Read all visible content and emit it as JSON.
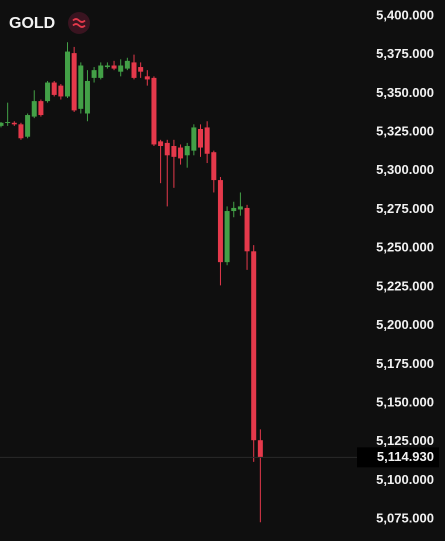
{
  "chart_data": {
    "type": "candlestick",
    "title": "GOLD",
    "open": [
      5329,
      5331,
      5331,
      5330,
      5322,
      5335,
      5345,
      5345,
      5357,
      5355,
      5348,
      5376,
      5340,
      5337,
      5360,
      5360,
      5367,
      5368,
      5364,
      5366,
      5370,
      5367,
      5361,
      5360,
      5319,
      5318,
      5316,
      5315,
      5310,
      5313,
      5327,
      5328,
      5312,
      5294,
      5241,
      5274,
      5275,
      5276,
      5248,
      5126
    ],
    "high": [
      5331.5,
      5344,
      5332,
      5331,
      5337,
      5352,
      5346,
      5358,
      5358,
      5356,
      5383,
      5380,
      5370,
      5365,
      5367,
      5370,
      5370,
      5371,
      5372,
      5373,
      5375,
      5370,
      5365,
      5361,
      5320,
      5320,
      5320,
      5317,
      5318,
      5330,
      5330,
      5332,
      5313,
      5296,
      5277,
      5280,
      5286,
      5278,
      5252,
      5133
    ],
    "low": [
      5328,
      5329,
      5329,
      5320,
      5321,
      5334,
      5335,
      5344,
      5348,
      5346,
      5347,
      5338,
      5337,
      5332,
      5357,
      5359,
      5366,
      5365,
      5361,
      5365,
      5359,
      5360,
      5355,
      5316,
      5292,
      5277,
      5289,
      5304,
      5302,
      5310,
      5309,
      5305,
      5286,
      5226,
      5239,
      5270,
      5271,
      5236,
      5112,
      5073
    ],
    "close": [
      5331,
      5331.5,
      5330,
      5321,
      5336,
      5345,
      5336,
      5357,
      5349,
      5348,
      5377,
      5339,
      5368,
      5358,
      5365,
      5368,
      5368,
      5366,
      5368,
      5371,
      5360,
      5364,
      5359,
      5317,
      5316,
      5310,
      5309,
      5308,
      5316,
      5328,
      5315,
      5311,
      5294,
      5241,
      5274,
      5276,
      5277,
      5248,
      5126,
      5115
    ],
    "up_color": "#43a047",
    "down_color": "#e5394b",
    "ylim": [
      5060.9,
      5410.3
    ],
    "yticks": [
      {
        "value": 5400,
        "label": "5,400.000"
      },
      {
        "value": 5375,
        "label": "5,375.000"
      },
      {
        "value": 5350,
        "label": "5,350.000"
      },
      {
        "value": 5325,
        "label": "5,325.000"
      },
      {
        "value": 5300,
        "label": "5,300.000"
      },
      {
        "value": 5275,
        "label": "5,275.000"
      },
      {
        "value": 5250,
        "label": "5,250.000"
      },
      {
        "value": 5225,
        "label": "5,225.000"
      },
      {
        "value": 5200,
        "label": "5,200.000"
      },
      {
        "value": 5175,
        "label": "5,175.000"
      },
      {
        "value": 5150,
        "label": "5,150.000"
      },
      {
        "value": 5125,
        "label": "5,125.000"
      },
      {
        "value": 5100,
        "label": "5,100.000"
      },
      {
        "value": 5075,
        "label": "5,075.000"
      }
    ],
    "last_price": {
      "value": 5114.93,
      "label": "5,114.930"
    }
  }
}
